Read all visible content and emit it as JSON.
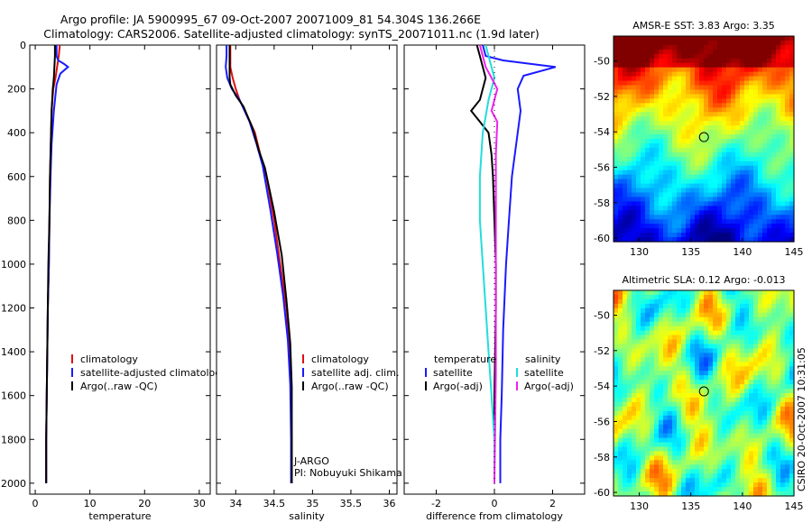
{
  "title_line1": "Argo profile: JA 5900995_67 09-Oct-2007 20071009_81 54.304S 136.266E",
  "title_line2": "Climatology: CARS2006. Satellite-adjusted climatology: synTS_20071011.nc (1.9d later)",
  "side_label": "CSIRO 20-Oct-2007 10:31:05",
  "colors": {
    "climatology": "#e01010",
    "satellite": "#1a1aff",
    "argo": "#000000",
    "satellite_diff_salinity": "#22dddd",
    "argo_diff_salinity": "#ee22ee",
    "map_marker": "#000000"
  },
  "chart_data": [
    {
      "type": "line",
      "name": "temperature-panel",
      "xlabel": "temperature",
      "ylabel": "",
      "xlim": [
        -1,
        32
      ],
      "ylim": [
        2050,
        0
      ],
      "xticks": [
        0,
        10,
        20,
        30
      ],
      "xtick_labels": [
        "0",
        "10",
        "20",
        "30"
      ],
      "yticks": [
        0,
        200,
        400,
        600,
        800,
        1000,
        1200,
        1400,
        1600,
        1800,
        2000
      ],
      "ytick_labels": [
        "0",
        "200",
        "400",
        "600",
        "800",
        "1000",
        "1200",
        "1400",
        "1600",
        "1800",
        "2000"
      ],
      "legend": [
        "climatology",
        "satellite-adjusted climatology",
        "Argo(..raw -QC)"
      ],
      "series": [
        {
          "name": "climatology",
          "color_key": "climatology",
          "x": [
            4.5,
            4.3,
            4.0,
            3.7,
            3.3,
            3.0,
            2.9,
            2.8,
            2.7,
            2.6,
            2.5,
            2.3,
            2.2,
            2.1,
            2.0,
            2.0
          ],
          "y": [
            0,
            50,
            100,
            150,
            200,
            300,
            400,
            500,
            600,
            800,
            1000,
            1200,
            1400,
            1600,
            1800,
            2000
          ]
        },
        {
          "name": "satellite-adjusted climatology",
          "color_key": "satellite",
          "x": [
            3.9,
            3.9,
            4.2,
            5.2,
            6.0,
            4.6,
            3.9,
            3.4,
            3.0,
            2.8,
            2.6,
            2.5,
            2.3,
            2.2,
            2.1,
            2.0,
            2.0
          ],
          "y": [
            0,
            50,
            70,
            85,
            100,
            130,
            180,
            300,
            450,
            600,
            800,
            1000,
            1200,
            1400,
            1600,
            1800,
            2000
          ]
        },
        {
          "name": "Argo(..raw -QC)",
          "color_key": "argo",
          "x": [
            3.6,
            3.6,
            3.5,
            3.4,
            3.2,
            3.0,
            2.9,
            2.8,
            2.7,
            2.6,
            2.4,
            2.3,
            2.2,
            2.1,
            2.0,
            2.0
          ],
          "y": [
            0,
            50,
            100,
            150,
            200,
            300,
            400,
            500,
            600,
            800,
            1000,
            1200,
            1400,
            1600,
            1800,
            2000
          ]
        }
      ]
    },
    {
      "type": "line",
      "name": "salinity-panel",
      "xlabel": "salinity",
      "ylabel": "",
      "xlim": [
        33.75,
        36.1
      ],
      "ylim": [
        2050,
        0
      ],
      "xticks": [
        34,
        34.5,
        35,
        35.5,
        36
      ],
      "xtick_labels": [
        "34",
        "34.5",
        "35",
        "35.5",
        "36"
      ],
      "yticks": [],
      "ytick_labels": [],
      "legend": [
        "climatology",
        "satellite adj. clim.",
        "Argo(..raw -QC)"
      ],
      "annotation": [
        "J-ARGO",
        "PI: Nobuyuki Shikama"
      ],
      "series": [
        {
          "name": "climatology",
          "color_key": "climatology",
          "x": [
            33.93,
            33.93,
            33.96,
            34.0,
            34.05,
            34.12,
            34.25,
            34.32,
            34.4,
            34.5,
            34.58,
            34.66,
            34.7,
            34.72,
            34.73,
            34.73
          ],
          "y": [
            0,
            100,
            150,
            200,
            250,
            300,
            400,
            500,
            600,
            800,
            1000,
            1200,
            1400,
            1600,
            1800,
            2000
          ]
        },
        {
          "name": "satellite adj. clim.",
          "color_key": "satellite",
          "x": [
            33.88,
            33.88,
            33.87,
            33.89,
            33.95,
            34.05,
            34.18,
            34.27,
            34.35,
            34.45,
            34.54,
            34.62,
            34.68,
            34.71,
            34.72,
            34.72
          ],
          "y": [
            0,
            50,
            100,
            150,
            200,
            250,
            350,
            450,
            550,
            750,
            950,
            1150,
            1350,
            1550,
            1800,
            2000
          ]
        },
        {
          "name": "Argo(..raw -QC)",
          "color_key": "argo",
          "x": [
            33.92,
            33.92,
            33.92,
            33.93,
            34.0,
            34.1,
            34.22,
            34.3,
            34.38,
            34.5,
            34.6,
            34.66,
            34.71,
            34.73,
            34.73,
            34.73
          ],
          "y": [
            0,
            100,
            150,
            180,
            230,
            280,
            380,
            480,
            560,
            760,
            960,
            1160,
            1360,
            1560,
            1800,
            2000
          ]
        }
      ]
    },
    {
      "type": "line",
      "name": "difference-panel",
      "xlabel": "difference from climatology",
      "ylabel": "",
      "xlim": [
        -3.1,
        3.1
      ],
      "ylim": [
        2050,
        0
      ],
      "xticks": [
        -2,
        0,
        2
      ],
      "xtick_labels": [
        "-2",
        "0",
        "2"
      ],
      "yticks": [],
      "ytick_labels": [],
      "legend_headers": [
        "temperature",
        "salinity"
      ],
      "legend": [
        "satellite",
        "Argo(-adj)",
        "satellite",
        "Argo(-adj)"
      ],
      "series": [
        {
          "name": "temperature satellite",
          "color_key": "satellite",
          "x": [
            -0.4,
            -0.3,
            0.3,
            1.5,
            2.1,
            1.0,
            0.8,
            0.9,
            0.8,
            0.6,
            0.5,
            0.4,
            0.3,
            0.25,
            0.2,
            0.2
          ],
          "y": [
            0,
            50,
            70,
            90,
            100,
            140,
            200,
            300,
            400,
            600,
            800,
            1000,
            1300,
            1600,
            1800,
            2000
          ]
        },
        {
          "name": "temperature Argo(-adj)",
          "color_key": "argo",
          "x": [
            -0.6,
            -0.5,
            -0.3,
            -0.5,
            -0.8,
            -0.5,
            -0.2,
            -0.1,
            -0.05,
            0.0,
            0.05,
            0.05,
            0.0,
            0.0
          ],
          "y": [
            0,
            50,
            150,
            250,
            300,
            350,
            400,
            500,
            600,
            800,
            1000,
            1200,
            1600,
            2000
          ]
        },
        {
          "name": "salinity satellite",
          "color_key": "satellite_diff_salinity",
          "x": [
            -0.3,
            -0.2,
            0.0,
            -0.2,
            -0.4,
            -0.5,
            -0.5,
            -0.4,
            -0.3,
            -0.2,
            -0.1,
            0.0,
            0.0
          ],
          "y": [
            0,
            50,
            150,
            250,
            400,
            600,
            800,
            1000,
            1200,
            1400,
            1600,
            1800,
            2000
          ]
        },
        {
          "name": "salinity Argo(-adj)",
          "color_key": "argo_diff_salinity",
          "x": [
            -0.5,
            -0.4,
            -0.3,
            -0.1,
            0.1,
            0.0,
            -0.1,
            0.1,
            0.05,
            0.05,
            0.05,
            0.0
          ],
          "y": [
            0,
            50,
            100,
            150,
            200,
            250,
            300,
            350,
            500,
            1000,
            1500,
            2000
          ]
        }
      ]
    },
    {
      "type": "heatmap",
      "name": "sst-map",
      "title": "AMSR-E SST: 3.83 Argo: 3.35",
      "xlim": [
        127.5,
        145
      ],
      "ylim": [
        -60.2,
        -48.6
      ],
      "xticks": [
        130,
        135,
        140,
        145
      ],
      "xtick_labels": [
        "130",
        "135",
        "140",
        "145"
      ],
      "yticks": [
        -50,
        -52,
        -54,
        -56,
        -58,
        -60
      ],
      "ytick_labels": [
        "-50",
        "-52",
        "-54",
        "-56",
        "-58",
        "-60"
      ],
      "marker": {
        "lon": 136.27,
        "lat": -54.3
      }
    },
    {
      "type": "heatmap",
      "name": "sla-map",
      "title": "Altimetric SLA: 0.12 Argo: -0.013",
      "xlim": [
        127.5,
        145
      ],
      "ylim": [
        -60.2,
        -48.6
      ],
      "xticks": [
        130,
        135,
        140,
        145
      ],
      "xtick_labels": [
        "130",
        "135",
        "140",
        "145"
      ],
      "yticks": [
        -50,
        -52,
        -54,
        -56,
        -58,
        -60
      ],
      "ytick_labels": [
        "-50",
        "-52",
        "-54",
        "-56",
        "-58",
        "-60"
      ],
      "marker": {
        "lon": 136.27,
        "lat": -54.3
      }
    }
  ]
}
